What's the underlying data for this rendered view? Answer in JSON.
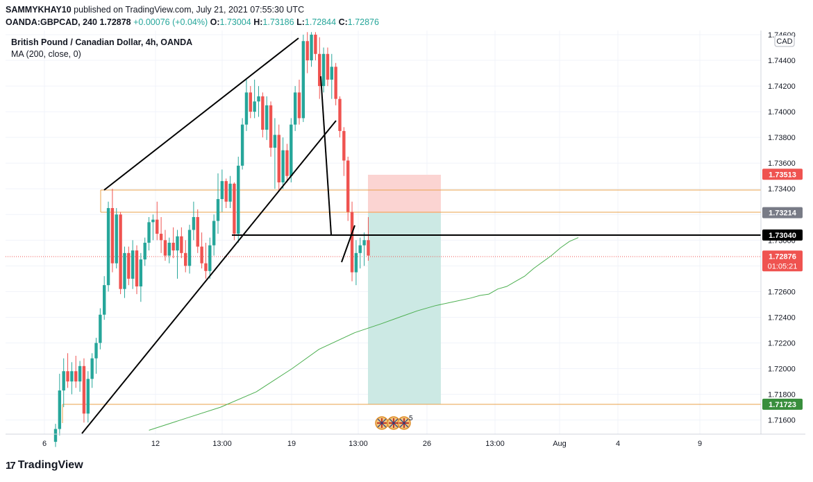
{
  "header": {
    "author": "SAMMYKHAY10",
    "published_text": " published on TradingView.com, July 21, 2021 07:55:30 UTC",
    "symbol": "OANDA:GBPCAD, 240",
    "last": "1.72878",
    "change": "+0.00076 (+0.04%)",
    "open_label": "O:",
    "open_value": "1.73004",
    "high_label": "H:",
    "high_value": "1.73186",
    "low_label": "L:",
    "low_value": "1.72844",
    "close_label": "C:",
    "close_value": "1.72876"
  },
  "legend": {
    "title": "British Pound / Canadian Dollar, 4h, OANDA",
    "indicator": "MA (200, close, 0)"
  },
  "currency_badge": "CAD",
  "footer": {
    "logo_text": "TradingView",
    "logo_mark": "17"
  },
  "event_count": "5",
  "colors": {
    "up": "#26a69a",
    "down": "#ef5350",
    "zone": "#e8a14a",
    "trendline": "#000000",
    "ma": "#4caf50",
    "stop_zone": "#fbd4d2",
    "target_zone": "#cce9e4"
  },
  "chart_data": {
    "type": "candlestick",
    "title": "British Pound / Canadian Dollar, 4h, OANDA",
    "y_ticks": [
      "1.74600",
      "1.74400",
      "1.74200",
      "1.74000",
      "1.73800",
      "1.73600",
      "1.73400",
      "1.73200",
      "1.73000",
      "1.72800",
      "1.72600",
      "1.72400",
      "1.72200",
      "1.72000",
      "1.71800",
      "1.71600"
    ],
    "x_ticks": [
      "6",
      "12",
      "13:00",
      "19",
      "13:00",
      "26",
      "13:00",
      "Aug",
      "4",
      "9"
    ],
    "price_labels": [
      {
        "text": "1.73513",
        "value": 1.73513,
        "bg": "#ef5350",
        "fg": "#ffffff"
      },
      {
        "text": "1.73214",
        "value": 1.73214,
        "bg": "#787b86",
        "fg": "#ffffff"
      },
      {
        "text": "1.73040",
        "value": 1.7304,
        "bg": "#000000",
        "fg": "#ffffff"
      },
      {
        "text": "1.72876",
        "value": 1.72876,
        "bg": "#ef5350",
        "fg": "#ffffff",
        "sub": "01:05:21"
      },
      {
        "text": "1.71723",
        "value": 1.71723,
        "bg": "#388e3c",
        "fg": "#ffffff"
      }
    ],
    "candles": [
      {
        "o": 1.7143,
        "h": 1.7157,
        "l": 1.7139,
        "c": 1.7153
      },
      {
        "o": 1.7153,
        "h": 1.7196,
        "l": 1.7148,
        "c": 1.7183
      },
      {
        "o": 1.7183,
        "h": 1.7208,
        "l": 1.717,
        "c": 1.7198
      },
      {
        "o": 1.7198,
        "h": 1.7212,
        "l": 1.7185,
        "c": 1.719
      },
      {
        "o": 1.719,
        "h": 1.7205,
        "l": 1.718,
        "c": 1.7198
      },
      {
        "o": 1.7198,
        "h": 1.721,
        "l": 1.7185,
        "c": 1.719
      },
      {
        "o": 1.719,
        "h": 1.7206,
        "l": 1.7182,
        "c": 1.7202
      },
      {
        "o": 1.7202,
        "h": 1.7208,
        "l": 1.7158,
        "c": 1.7165
      },
      {
        "o": 1.7165,
        "h": 1.7198,
        "l": 1.7158,
        "c": 1.7192
      },
      {
        "o": 1.7192,
        "h": 1.7212,
        "l": 1.7185,
        "c": 1.7208
      },
      {
        "o": 1.7208,
        "h": 1.7224,
        "l": 1.7196,
        "c": 1.722
      },
      {
        "o": 1.722,
        "h": 1.7247,
        "l": 1.7215,
        "c": 1.7242
      },
      {
        "o": 1.7242,
        "h": 1.7272,
        "l": 1.7238,
        "c": 1.7265
      },
      {
        "o": 1.7265,
        "h": 1.733,
        "l": 1.726,
        "c": 1.7325
      },
      {
        "o": 1.7325,
        "h": 1.734,
        "l": 1.7275,
        "c": 1.7282
      },
      {
        "o": 1.7282,
        "h": 1.7325,
        "l": 1.7278,
        "c": 1.732
      },
      {
        "o": 1.732,
        "h": 1.7322,
        "l": 1.7258,
        "c": 1.7262
      },
      {
        "o": 1.7262,
        "h": 1.7295,
        "l": 1.7255,
        "c": 1.729
      },
      {
        "o": 1.729,
        "h": 1.7295,
        "l": 1.7265,
        "c": 1.727
      },
      {
        "o": 1.727,
        "h": 1.73,
        "l": 1.7262,
        "c": 1.7292
      },
      {
        "o": 1.7292,
        "h": 1.7296,
        "l": 1.7258,
        "c": 1.7264
      },
      {
        "o": 1.7264,
        "h": 1.729,
        "l": 1.7252,
        "c": 1.7285
      },
      {
        "o": 1.7285,
        "h": 1.7302,
        "l": 1.728,
        "c": 1.7298
      },
      {
        "o": 1.7298,
        "h": 1.7318,
        "l": 1.7292,
        "c": 1.7314
      },
      {
        "o": 1.7314,
        "h": 1.732,
        "l": 1.73,
        "c": 1.7316
      },
      {
        "o": 1.7316,
        "h": 1.733,
        "l": 1.73,
        "c": 1.7305
      },
      {
        "o": 1.7305,
        "h": 1.7318,
        "l": 1.729,
        "c": 1.73
      },
      {
        "o": 1.73,
        "h": 1.7308,
        "l": 1.7284,
        "c": 1.7288
      },
      {
        "o": 1.7288,
        "h": 1.7302,
        "l": 1.7282,
        "c": 1.7298
      },
      {
        "o": 1.7298,
        "h": 1.731,
        "l": 1.7286,
        "c": 1.7292
      },
      {
        "o": 1.7292,
        "h": 1.7308,
        "l": 1.727,
        "c": 1.7303
      },
      {
        "o": 1.7303,
        "h": 1.731,
        "l": 1.7286,
        "c": 1.729
      },
      {
        "o": 1.729,
        "h": 1.73,
        "l": 1.7275,
        "c": 1.728
      },
      {
        "o": 1.728,
        "h": 1.7312,
        "l": 1.7274,
        "c": 1.7308
      },
      {
        "o": 1.7308,
        "h": 1.733,
        "l": 1.73,
        "c": 1.7318
      },
      {
        "o": 1.7318,
        "h": 1.7324,
        "l": 1.729,
        "c": 1.7295
      },
      {
        "o": 1.7295,
        "h": 1.7306,
        "l": 1.7278,
        "c": 1.7282
      },
      {
        "o": 1.7282,
        "h": 1.7298,
        "l": 1.727,
        "c": 1.7276
      },
      {
        "o": 1.7276,
        "h": 1.7302,
        "l": 1.727,
        "c": 1.7296
      },
      {
        "o": 1.7296,
        "h": 1.732,
        "l": 1.7288,
        "c": 1.7315
      },
      {
        "o": 1.7315,
        "h": 1.7352,
        "l": 1.7305,
        "c": 1.7332
      },
      {
        "o": 1.7332,
        "h": 1.7355,
        "l": 1.7322,
        "c": 1.7346
      },
      {
        "o": 1.7346,
        "h": 1.7348,
        "l": 1.7325,
        "c": 1.733
      },
      {
        "o": 1.733,
        "h": 1.735,
        "l": 1.7325,
        "c": 1.7344
      },
      {
        "o": 1.7344,
        "h": 1.7345,
        "l": 1.73,
        "c": 1.7305
      },
      {
        "o": 1.7305,
        "h": 1.7365,
        "l": 1.7298,
        "c": 1.7358
      },
      {
        "o": 1.7358,
        "h": 1.7395,
        "l": 1.7355,
        "c": 1.739
      },
      {
        "o": 1.739,
        "h": 1.7425,
        "l": 1.7385,
        "c": 1.7415
      },
      {
        "o": 1.7415,
        "h": 1.742,
        "l": 1.7395,
        "c": 1.74
      },
      {
        "o": 1.74,
        "h": 1.7425,
        "l": 1.7395,
        "c": 1.7408
      },
      {
        "o": 1.7408,
        "h": 1.742,
        "l": 1.7396,
        "c": 1.7412
      },
      {
        "o": 1.7412,
        "h": 1.7415,
        "l": 1.738,
        "c": 1.7386
      },
      {
        "o": 1.7386,
        "h": 1.7412,
        "l": 1.7378,
        "c": 1.7405
      },
      {
        "o": 1.7405,
        "h": 1.7408,
        "l": 1.7365,
        "c": 1.7372
      },
      {
        "o": 1.7372,
        "h": 1.7395,
        "l": 1.734,
        "c": 1.7382
      },
      {
        "o": 1.7382,
        "h": 1.739,
        "l": 1.7338,
        "c": 1.7345
      },
      {
        "o": 1.7345,
        "h": 1.738,
        "l": 1.734,
        "c": 1.737
      },
      {
        "o": 1.737,
        "h": 1.7375,
        "l": 1.7345,
        "c": 1.735
      },
      {
        "o": 1.735,
        "h": 1.7395,
        "l": 1.7345,
        "c": 1.739
      },
      {
        "o": 1.739,
        "h": 1.742,
        "l": 1.7385,
        "c": 1.7415
      },
      {
        "o": 1.7415,
        "h": 1.7425,
        "l": 1.739,
        "c": 1.7395
      },
      {
        "o": 1.7395,
        "h": 1.746,
        "l": 1.7392,
        "c": 1.7455
      },
      {
        "o": 1.7455,
        "h": 1.7462,
        "l": 1.743,
        "c": 1.744
      },
      {
        "o": 1.744,
        "h": 1.7462,
        "l": 1.7435,
        "c": 1.746
      },
      {
        "o": 1.746,
        "h": 1.7462,
        "l": 1.744,
        "c": 1.7445
      },
      {
        "o": 1.7445,
        "h": 1.7458,
        "l": 1.741,
        "c": 1.742
      },
      {
        "o": 1.742,
        "h": 1.745,
        "l": 1.7415,
        "c": 1.7445
      },
      {
        "o": 1.7445,
        "h": 1.745,
        "l": 1.742,
        "c": 1.7425
      },
      {
        "o": 1.7425,
        "h": 1.7445,
        "l": 1.741,
        "c": 1.7435
      },
      {
        "o": 1.7435,
        "h": 1.7438,
        "l": 1.7405,
        "c": 1.741
      },
      {
        "o": 1.741,
        "h": 1.7412,
        "l": 1.738,
        "c": 1.7385
      },
      {
        "o": 1.7385,
        "h": 1.7388,
        "l": 1.735,
        "c": 1.7362
      },
      {
        "o": 1.7362,
        "h": 1.7365,
        "l": 1.7315,
        "c": 1.7322
      },
      {
        "o": 1.7322,
        "h": 1.733,
        "l": 1.7268,
        "c": 1.7275
      },
      {
        "o": 1.7275,
        "h": 1.73,
        "l": 1.7265,
        "c": 1.729
      },
      {
        "o": 1.729,
        "h": 1.7302,
        "l": 1.7278,
        "c": 1.7296
      },
      {
        "o": 1.7296,
        "h": 1.7306,
        "l": 1.728,
        "c": 1.73
      },
      {
        "o": 1.73,
        "h": 1.7318,
        "l": 1.7284,
        "c": 1.7288
      }
    ],
    "ma": [
      [
        0.24,
        1.7152
      ],
      [
        0.32,
        1.7161
      ],
      [
        0.4,
        1.717
      ],
      [
        0.48,
        1.7182
      ],
      [
        0.56,
        1.72
      ],
      [
        0.62,
        1.7215
      ],
      [
        0.7,
        1.7228
      ],
      [
        0.76,
        1.7235
      ],
      [
        0.8,
        1.724
      ],
      [
        0.84,
        1.7245
      ],
      [
        0.88,
        1.7249
      ],
      [
        0.92,
        1.7252
      ],
      [
        0.96,
        1.7255
      ],
      [
        0.98,
        1.7257
      ],
      [
        1.0,
        1.7258
      ],
      [
        1.02,
        1.7262
      ],
      [
        1.04,
        1.7264
      ],
      [
        1.06,
        1.7268
      ],
      [
        1.08,
        1.7272
      ],
      [
        1.1,
        1.7278
      ],
      [
        1.12,
        1.7283
      ],
      [
        1.14,
        1.7288
      ],
      [
        1.16,
        1.7294
      ],
      [
        1.18,
        1.7299
      ],
      [
        1.2,
        1.7302
      ]
    ]
  }
}
